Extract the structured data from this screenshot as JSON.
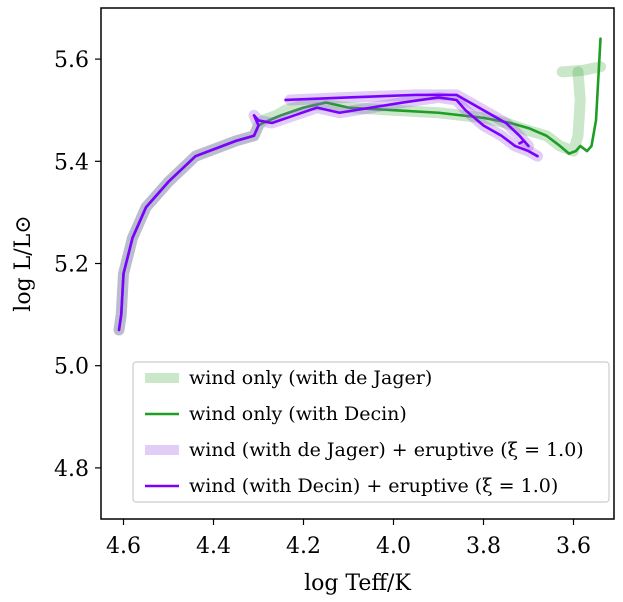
{
  "chart_data": {
    "type": "line",
    "xlabel": "log Teff/K",
    "ylabel": "log L/L⊙",
    "xlim": [
      4.65,
      3.51
    ],
    "ylim": [
      4.7,
      5.7
    ],
    "x_reversed": true,
    "x_ticks": [
      4.6,
      4.4,
      4.2,
      4.0,
      3.8,
      3.6
    ],
    "x_tick_labels": [
      "4.6",
      "4.4",
      "4.2",
      "4.0",
      "3.8",
      "3.6"
    ],
    "y_ticks": [
      4.8,
      5.0,
      5.2,
      5.4,
      5.6
    ],
    "y_tick_labels": [
      "4.8",
      "5.0",
      "5.2",
      "5.4",
      "5.6"
    ],
    "grid": false,
    "legend_position": "bottom-right",
    "series": [
      {
        "name": "wind only (with de Jager)",
        "color": "#2ca02c",
        "opacity": 0.25,
        "thick": true,
        "points": [
          [
            4.61,
            5.07
          ],
          [
            4.605,
            5.1
          ],
          [
            4.6,
            5.18
          ],
          [
            4.58,
            5.25
          ],
          [
            4.55,
            5.31
          ],
          [
            4.5,
            5.36
          ],
          [
            4.44,
            5.41
          ],
          [
            4.35,
            5.44
          ],
          [
            4.31,
            5.45
          ],
          [
            4.3,
            5.47
          ],
          [
            4.29,
            5.48
          ],
          [
            4.26,
            5.49
          ],
          [
            4.24,
            5.5
          ],
          [
            4.2,
            5.51
          ],
          [
            4.15,
            5.51
          ],
          [
            4.1,
            5.505
          ],
          [
            4.0,
            5.5
          ],
          [
            3.9,
            5.495
          ],
          [
            3.8,
            5.485
          ],
          [
            3.75,
            5.475
          ],
          [
            3.7,
            5.46
          ],
          [
            3.66,
            5.45
          ],
          [
            3.63,
            5.43
          ],
          [
            3.6,
            5.42
          ],
          [
            3.59,
            5.45
          ],
          [
            3.585,
            5.52
          ],
          [
            3.59,
            5.575
          ]
        ]
      },
      {
        "name": "wind only (de Jager) end segment",
        "color": "#2ca02c",
        "opacity": 0.25,
        "thick": true,
        "legend": false,
        "points": [
          [
            3.625,
            5.575
          ],
          [
            3.58,
            5.578
          ],
          [
            3.54,
            5.585
          ]
        ]
      },
      {
        "name": "wind only (with Decin)",
        "color": "#1f9e24",
        "opacity": 1,
        "thick": false,
        "points": [
          [
            4.61,
            5.07
          ],
          [
            4.605,
            5.1
          ],
          [
            4.6,
            5.18
          ],
          [
            4.58,
            5.25
          ],
          [
            4.55,
            5.31
          ],
          [
            4.5,
            5.36
          ],
          [
            4.44,
            5.41
          ],
          [
            4.35,
            5.44
          ],
          [
            4.31,
            5.45
          ],
          [
            4.3,
            5.47
          ],
          [
            4.29,
            5.475
          ],
          [
            4.25,
            5.49
          ],
          [
            4.2,
            5.505
          ],
          [
            4.15,
            5.515
          ],
          [
            4.1,
            5.505
          ],
          [
            4.0,
            5.5
          ],
          [
            3.9,
            5.495
          ],
          [
            3.8,
            5.485
          ],
          [
            3.74,
            5.475
          ],
          [
            3.7,
            5.465
          ],
          [
            3.66,
            5.45
          ],
          [
            3.63,
            5.43
          ],
          [
            3.61,
            5.415
          ],
          [
            3.595,
            5.42
          ],
          [
            3.585,
            5.43
          ],
          [
            3.57,
            5.42
          ],
          [
            3.56,
            5.43
          ],
          [
            3.55,
            5.48
          ],
          [
            3.545,
            5.56
          ],
          [
            3.54,
            5.64
          ]
        ]
      },
      {
        "name": "wind (with de Jager) + eruptive (ξ = 1.0)",
        "color": "#9b59e0",
        "opacity": 0.3,
        "thick": true,
        "points": [
          [
            4.61,
            5.07
          ],
          [
            4.605,
            5.1
          ],
          [
            4.6,
            5.18
          ],
          [
            4.58,
            5.25
          ],
          [
            4.55,
            5.31
          ],
          [
            4.5,
            5.36
          ],
          [
            4.44,
            5.41
          ],
          [
            4.35,
            5.44
          ],
          [
            4.31,
            5.45
          ],
          [
            4.3,
            5.47
          ],
          [
            4.31,
            5.49
          ],
          [
            4.3,
            5.48
          ],
          [
            4.27,
            5.475
          ],
          [
            4.22,
            5.49
          ],
          [
            4.17,
            5.505
          ],
          [
            4.12,
            5.495
          ],
          [
            4.05,
            5.505
          ],
          [
            3.98,
            5.515
          ],
          [
            3.9,
            5.525
          ],
          [
            3.86,
            5.52
          ],
          [
            3.84,
            5.5
          ],
          [
            3.8,
            5.47
          ],
          [
            3.76,
            5.45
          ],
          [
            3.73,
            5.43
          ],
          [
            3.7,
            5.42
          ],
          [
            3.68,
            5.41
          ]
        ]
      },
      {
        "name": "wind (with de Jager) + eruptive top branch",
        "color": "#9b59e0",
        "opacity": 0.3,
        "thick": true,
        "legend": false,
        "points": [
          [
            4.23,
            5.52
          ],
          [
            4.1,
            5.525
          ],
          [
            3.95,
            5.53
          ],
          [
            3.86,
            5.53
          ],
          [
            3.84,
            5.52
          ],
          [
            3.8,
            5.5
          ],
          [
            3.75,
            5.475
          ],
          [
            3.72,
            5.45
          ],
          [
            3.7,
            5.43
          ]
        ]
      },
      {
        "name": "wind (with Decin) + eruptive (ξ = 1.0)",
        "color": "#7b00ff",
        "opacity": 1,
        "thick": false,
        "points": [
          [
            4.61,
            5.07
          ],
          [
            4.605,
            5.1
          ],
          [
            4.6,
            5.18
          ],
          [
            4.58,
            5.25
          ],
          [
            4.55,
            5.31
          ],
          [
            4.5,
            5.36
          ],
          [
            4.44,
            5.41
          ],
          [
            4.35,
            5.44
          ],
          [
            4.31,
            5.45
          ],
          [
            4.3,
            5.47
          ],
          [
            4.31,
            5.49
          ],
          [
            4.3,
            5.48
          ],
          [
            4.27,
            5.475
          ],
          [
            4.22,
            5.49
          ],
          [
            4.17,
            5.505
          ],
          [
            4.12,
            5.495
          ],
          [
            4.05,
            5.505
          ],
          [
            3.98,
            5.515
          ],
          [
            3.9,
            5.525
          ],
          [
            3.86,
            5.52
          ],
          [
            3.84,
            5.5
          ],
          [
            3.8,
            5.47
          ],
          [
            3.76,
            5.45
          ],
          [
            3.73,
            5.43
          ],
          [
            3.7,
            5.42
          ],
          [
            3.68,
            5.41
          ]
        ]
      },
      {
        "name": "wind (with Decin) + eruptive top branch",
        "color": "#7b00ff",
        "opacity": 1,
        "thick": false,
        "legend": false,
        "points": [
          [
            4.24,
            5.52
          ],
          [
            4.1,
            5.525
          ],
          [
            3.95,
            5.53
          ],
          [
            3.86,
            5.53
          ],
          [
            3.84,
            5.52
          ],
          [
            3.8,
            5.5
          ],
          [
            3.75,
            5.475
          ],
          [
            3.72,
            5.45
          ],
          [
            3.7,
            5.43
          ],
          [
            3.71,
            5.44
          ],
          [
            3.72,
            5.435
          ]
        ]
      }
    ],
    "legend": [
      {
        "label": "wind only (with de Jager)",
        "color": "#2ca02c",
        "opacity": 0.25,
        "thick": true
      },
      {
        "label": "wind only (with Decin)",
        "color": "#1f9e24",
        "opacity": 1,
        "thick": false
      },
      {
        "label": "wind (with de Jager) + eruptive (ξ = 1.0)",
        "color": "#9b59e0",
        "opacity": 0.3,
        "thick": true
      },
      {
        "label": "wind (with Decin) + eruptive (ξ = 1.0)",
        "color": "#7b00ff",
        "opacity": 1,
        "thick": false
      }
    ]
  }
}
